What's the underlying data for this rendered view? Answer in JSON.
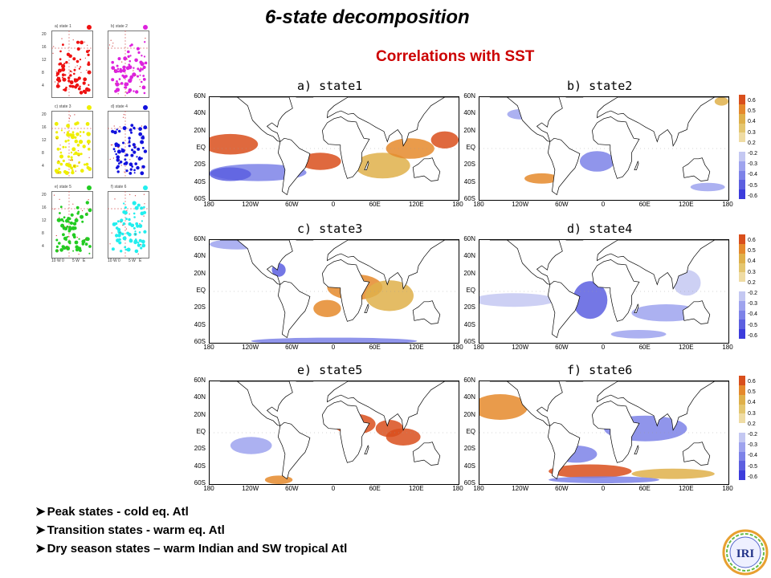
{
  "title": "6-state decomposition",
  "subtitle": "Correlations with SST",
  "mini_plots": [
    {
      "label": "a) state 1",
      "color": "#ee1111"
    },
    {
      "label": "b) state 2",
      "color": "#dd22dd"
    },
    {
      "label": "c) state 3",
      "color": "#eeee00"
    },
    {
      "label": "d) state 4",
      "color": "#1111dd"
    },
    {
      "label": "e) state 5",
      "color": "#22cc22"
    },
    {
      "label": "f) state 6",
      "color": "#22eeee"
    }
  ],
  "mini_yticks": [
    "20",
    "16",
    "12",
    "8",
    "4"
  ],
  "mini_xticks": [
    "10 W",
    "0",
    "5 W",
    "E"
  ],
  "panels": [
    {
      "label": "a) state1"
    },
    {
      "label": "b) state2"
    },
    {
      "label": "c) state3"
    },
    {
      "label": "d) state4"
    },
    {
      "label": "e) state5"
    },
    {
      "label": "f) state6"
    }
  ],
  "lat_ticks": [
    "60N",
    "40N",
    "20N",
    "EQ",
    "20S",
    "40S",
    "60S"
  ],
  "lon_ticks": [
    "180",
    "120W",
    "60W",
    "0",
    "60E",
    "120E",
    "180"
  ],
  "colorbar": {
    "ticks": [
      "0.6",
      "0.5",
      "0.4",
      "0.3",
      "0.2",
      "-0.2",
      "-0.3",
      "-0.4",
      "-0.5",
      "-0.6"
    ],
    "colors": [
      "#d94f1c",
      "#e5892c",
      "#dfb04a",
      "#e4c66f",
      "#efdca4",
      "#ffffff",
      "#c4c8f2",
      "#9ea3ee",
      "#7d82e8",
      "#5c5fe0",
      "#3c3cdc"
    ]
  },
  "bullets": [
    "Peak states - cold eq. Atl",
    "Transition states - warm eq. Atl",
    "Dry season states – warm Indian and SW tropical Atl"
  ],
  "logo_text": "IRI"
}
